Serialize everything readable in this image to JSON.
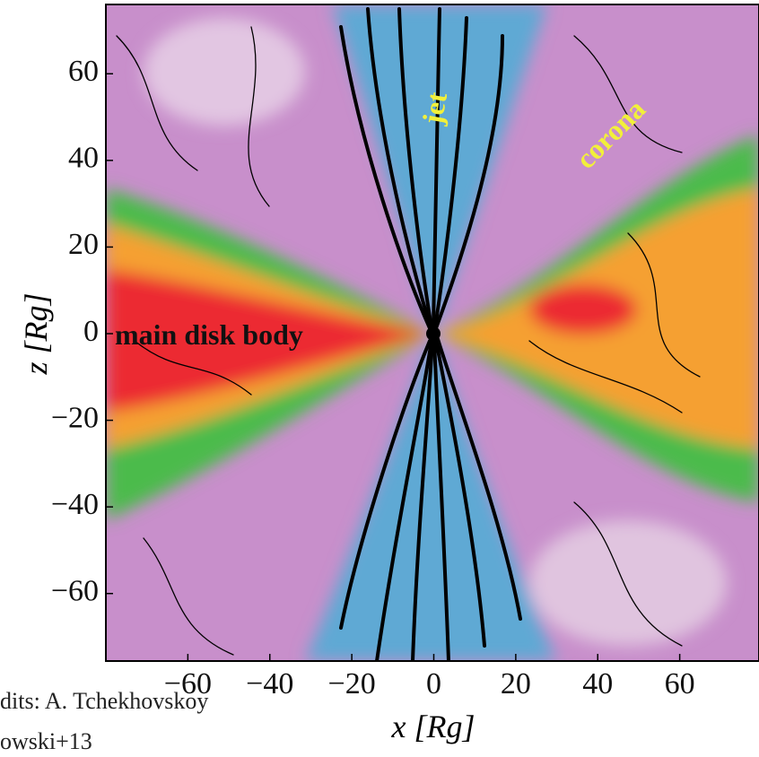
{
  "chart_data": {
    "type": "field",
    "xlabel": "x [Rg]",
    "ylabel": "z [Rg]",
    "xlim": [
      -80,
      80
    ],
    "ylim": [
      -76,
      76
    ],
    "xticks": [
      {
        "value": -60,
        "label": "−60"
      },
      {
        "value": -40,
        "label": "−40"
      },
      {
        "value": -20,
        "label": "−20"
      },
      0,
      20,
      40,
      60
    ],
    "yticks": [
      {
        "value": -60,
        "label": "−60"
      },
      {
        "value": -40,
        "label": "−40"
      },
      {
        "value": -20,
        "label": "−20"
      },
      0,
      20,
      40,
      60
    ],
    "grid": false,
    "annotations": [
      "jet",
      "corona",
      "main disk body"
    ],
    "credits": [
      "dits: A. Tchekhovskoy",
      "owski+13"
    ]
  }
}
